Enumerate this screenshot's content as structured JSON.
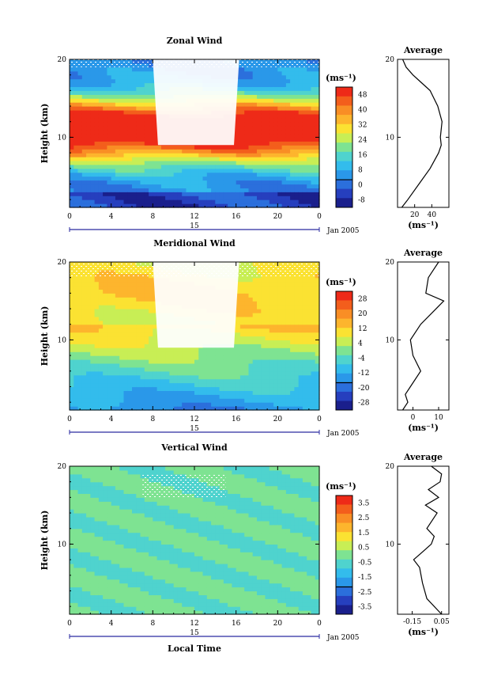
{
  "x_axis": {
    "label": "Local Time",
    "ticks": [
      "0",
      "4",
      "8",
      "12",
      "16",
      "20",
      "0"
    ],
    "date_tick": "15",
    "date_label": "Jan 2005"
  },
  "y_axis": {
    "label": "Height (km)",
    "ticks": [
      "10",
      "20"
    ]
  },
  "unit": "(ms⁻¹)",
  "panels": [
    {
      "title": "Zonal Wind",
      "avg_title": "Average",
      "avg_ticks": [
        "20",
        "40"
      ],
      "colorbar_ticks": [
        "48",
        "40",
        "32",
        "24",
        "16",
        "8",
        "0",
        "-8"
      ],
      "colorbar_colors": [
        "#ee2a18",
        "#f35e1c",
        "#f98e25",
        "#fdb52d",
        "#fbe232",
        "#c8ee55",
        "#7ee392",
        "#4fd3ce",
        "#33bcec",
        "#2a98e9",
        "#2b6fdc",
        "#263fbe",
        "#1a1f8c"
      ]
    },
    {
      "title": "Meridional Wind",
      "avg_title": "Average",
      "avg_ticks": [
        "0",
        "10"
      ],
      "colorbar_ticks": [
        "28",
        "20",
        "12",
        "4",
        "-4",
        "-12",
        "-20",
        "-28"
      ],
      "colorbar_colors": [
        "#ee2a18",
        "#f35e1c",
        "#f98e25",
        "#fdb52d",
        "#fbe232",
        "#c8ee55",
        "#7ee392",
        "#4fd3ce",
        "#33bcec",
        "#2a98e9",
        "#2b6fdc",
        "#263fbe",
        "#1a1f8c"
      ]
    },
    {
      "title": "Vertical Wind",
      "avg_title": "Average",
      "avg_ticks": [
        "-0.15",
        "0.05"
      ],
      "colorbar_ticks": [
        "3.5",
        "2.5",
        "1.5",
        "0.5",
        "-0.5",
        "-1.5",
        "-2.5",
        "-3.5"
      ],
      "colorbar_colors": [
        "#ee2a18",
        "#f35e1c",
        "#f98e25",
        "#fdb52d",
        "#fbe232",
        "#c8ee55",
        "#7ee392",
        "#4fd3ce",
        "#33bcec",
        "#2a98e9",
        "#2b6fdc",
        "#263fbe",
        "#1a1f8c"
      ]
    }
  ],
  "chart_data": [
    {
      "type": "heatmap",
      "title": "Zonal Wind",
      "xlabel": "",
      "ylabel": "Height (km)",
      "unit": "ms-1",
      "xlim": [
        0,
        24
      ],
      "ylim": [
        1,
        20
      ],
      "colorbar_levels": [
        -8,
        0,
        8,
        16,
        24,
        32,
        40,
        48
      ],
      "profile_height_km": [
        1,
        2,
        4,
        6,
        8,
        9,
        10,
        12,
        14,
        16,
        17,
        18,
        19,
        20
      ],
      "profile_values": [
        5,
        12,
        25,
        38,
        48,
        51,
        50,
        52,
        47,
        38,
        28,
        18,
        10,
        6
      ]
    },
    {
      "type": "heatmap",
      "title": "Meridional Wind",
      "xlabel": "",
      "ylabel": "Height (km)",
      "unit": "ms-1",
      "xlim": [
        0,
        24
      ],
      "ylim": [
        1,
        20
      ],
      "colorbar_levels": [
        -28,
        -20,
        -12,
        -4,
        4,
        12,
        20,
        28
      ],
      "profile_height_km": [
        1,
        2,
        3,
        4,
        6,
        8,
        10,
        12,
        14,
        15,
        16,
        18,
        19,
        20
      ],
      "profile_values": [
        -4,
        -2,
        -3,
        -1,
        3,
        0,
        -1,
        3,
        9,
        12,
        5,
        6,
        8,
        10
      ]
    },
    {
      "type": "heatmap",
      "title": "Vertical Wind",
      "xlabel": "Local Time",
      "ylabel": "Height (km)",
      "unit": "ms-1",
      "xlim": [
        0,
        24
      ],
      "ylim": [
        1,
        20
      ],
      "colorbar_levels": [
        -3.5,
        -2.5,
        -1.5,
        -0.5,
        0.5,
        1.5,
        2.5,
        3.5
      ],
      "profile_height_km": [
        1,
        3,
        5,
        7,
        8,
        9,
        10,
        11,
        12,
        14,
        15,
        16,
        17,
        18,
        19,
        20
      ],
      "profile_values": [
        0.05,
        -0.05,
        -0.08,
        -0.1,
        -0.14,
        -0.08,
        -0.02,
        0.0,
        -0.05,
        0.02,
        -0.06,
        0.03,
        -0.04,
        0.04,
        0.05,
        -0.02
      ]
    }
  ]
}
